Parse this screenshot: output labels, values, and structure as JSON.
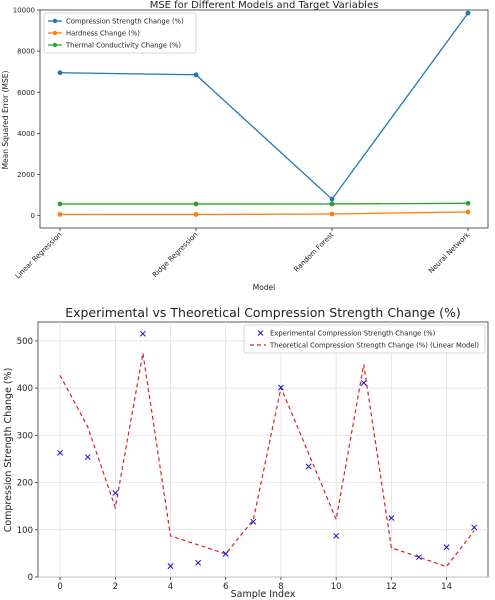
{
  "chart_data": [
    {
      "type": "line",
      "title": "MSE for Different Models and Target Variables",
      "xlabel": "Model",
      "ylabel": "Mean Squared Error (MSE)",
      "categories": [
        "Linear Regression",
        "Ridge Regression",
        "Random Forest",
        "Neural Network"
      ],
      "ylim": [
        -600,
        10000
      ],
      "yticks": [
        0,
        2000,
        4000,
        6000,
        8000,
        10000
      ],
      "grid": false,
      "legend_position": "top-left",
      "series": [
        {
          "name": "Compression Strength Change (%)",
          "color": "#1f77b4",
          "values": [
            6950,
            6850,
            800,
            9850
          ]
        },
        {
          "name": "Hardness Change (%)",
          "color": "#ff7f0e",
          "values": [
            60,
            55,
            80,
            180
          ]
        },
        {
          "name": "Thermal Conductivity Change (%)",
          "color": "#2ca02c",
          "values": [
            570,
            570,
            570,
            600
          ]
        }
      ]
    },
    {
      "type": "scatter",
      "title": "Experimental vs Theoretical Compression Strength Change (%)",
      "xlabel": "Sample Index",
      "ylabel": "Compression Strength Change (%)",
      "xlim": [
        -0.8,
        15.5
      ],
      "ylim": [
        0,
        540
      ],
      "xticks": [
        0,
        2,
        4,
        6,
        8,
        10,
        12,
        14
      ],
      "yticks": [
        0,
        100,
        200,
        300,
        400,
        500
      ],
      "grid": true,
      "legend_position": "top-right",
      "series": [
        {
          "name": "Experimental Compression Strength Change (%)",
          "style": "markers-x",
          "color": "#1414d2",
          "x": [
            0,
            1,
            2,
            3,
            4,
            5,
            6,
            7,
            8,
            9,
            10,
            11,
            12,
            13,
            14,
            15
          ],
          "y": [
            263,
            254,
            178,
            515,
            23,
            30,
            49,
            117,
            401,
            234,
            87,
            411,
            125,
            42,
            63,
            105
          ]
        },
        {
          "name": "Theoretical Compression Strength Change (%) (Linear Model)",
          "style": "dashed-line",
          "color": "#e0201f",
          "x": [
            0,
            1,
            2,
            3,
            4,
            5,
            6,
            7,
            8,
            9,
            10,
            11,
            12,
            13,
            14,
            15
          ],
          "y": [
            427,
            318,
            147,
            474,
            87,
            68,
            49,
            121,
            401,
            262,
            122,
            450,
            62,
            42,
            22,
            98
          ]
        }
      ]
    }
  ]
}
